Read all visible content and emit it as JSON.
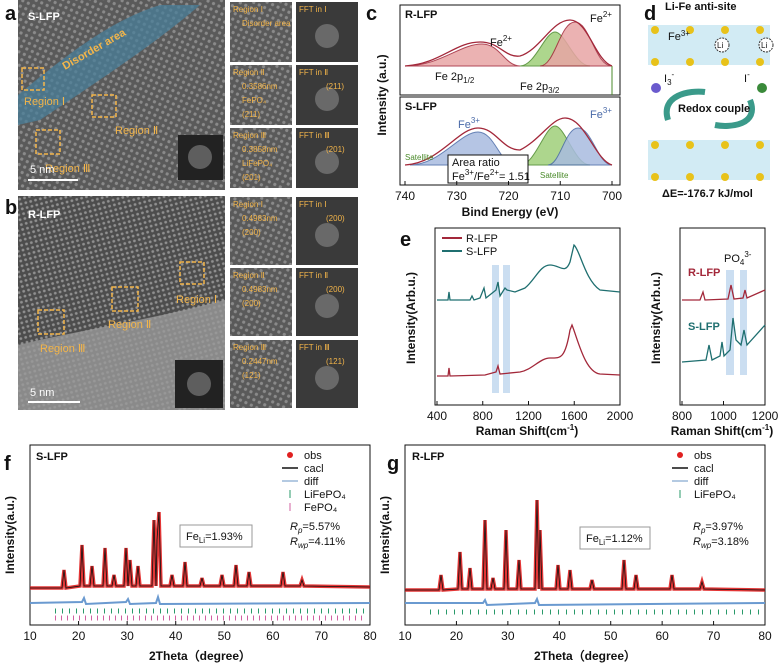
{
  "a": {
    "label": "a",
    "sample": "S-LFP",
    "disorder": "Disorder area",
    "regions": [
      "Region Ⅰ",
      "Region Ⅱ",
      "Region Ⅲ"
    ],
    "scale": "5 nm",
    "tiles": [
      {
        "title": "Region Ⅰ",
        "lines": [
          "Disorder area"
        ]
      },
      {
        "title": "Region Ⅱ",
        "lines": [
          "0.3586nm",
          "FePO₄",
          "(211)"
        ]
      },
      {
        "title": "Region Ⅲ",
        "lines": [
          "0.3858nm",
          "LiFePO₄",
          "(201)"
        ]
      }
    ],
    "ffts": [
      {
        "title": "FFT in Ⅰ"
      },
      {
        "title": "FFT in Ⅱ",
        "lines": [
          "(211)"
        ]
      },
      {
        "title": "FFT in Ⅲ",
        "lines": [
          "(201)"
        ]
      }
    ]
  },
  "b": {
    "label": "b",
    "sample": "R-LFP",
    "regions": [
      "Region Ⅰ",
      "Region Ⅱ",
      "Region Ⅲ"
    ],
    "scale": "5 nm",
    "tiles": [
      {
        "title": "Region Ⅰ",
        "lines": [
          "0.4983nm",
          "(200)"
        ]
      },
      {
        "title": "Region Ⅱ",
        "lines": [
          "0.4983nm",
          "(200)"
        ]
      },
      {
        "title": "Region Ⅲ",
        "lines": [
          "0.2447nm",
          "(121)"
        ]
      }
    ],
    "ffts": [
      {
        "title": "FFT in Ⅰ",
        "lines": [
          "(200)"
        ]
      },
      {
        "title": "FFT in Ⅱ",
        "lines": [
          "(200)"
        ]
      },
      {
        "title": "FFT in Ⅲ",
        "lines": [
          "(121)"
        ]
      }
    ]
  },
  "c": {
    "label": "c",
    "top": "R-LFP",
    "bottom": "S-LFP",
    "fe": "Fe",
    "fe2": "2+",
    "fe3": "3+",
    "p": "Fe 2p",
    "p12": "1/2",
    "p32": "3/2",
    "satellite": "Satellite",
    "ratio_title": "Area ratio",
    "ratio_mid": "/Fe",
    "ratio_end": "= 1.51",
    "ylabel": "Intensity (a.u.)",
    "xlabel": "Bind Energy (eV)",
    "xlim": [
      740,
      700
    ],
    "xticks": [
      740,
      730,
      720,
      710,
      700
    ]
  },
  "d": {
    "label": "d",
    "title": "Li-Fe anti-site",
    "fe": "Fe",
    "fe_sup": "3+",
    "li": "Li",
    "i": "I",
    "i3_sub": "3",
    "minus": "-",
    "redox": "Redox couple",
    "energy": "ΔE=-176.7 kJ/mol"
  },
  "e": {
    "label": "e",
    "legend": [
      {
        "name": "R-LFP",
        "color": "#a3283a"
      },
      {
        "name": "S-LFP",
        "color": "#1f6f70"
      }
    ],
    "ylabel": "Intensity(Arb.u.)",
    "xlabel": "Raman Shift(cm",
    "xlabel_sup": "-1",
    "xlabel_end": ")",
    "xlim": [
      400,
      2000
    ],
    "xticks": [
      400,
      800,
      1200,
      1600,
      2000
    ],
    "inset": {
      "xlim": [
        800,
        1200
      ],
      "xticks": [
        800,
        1000,
        1200
      ],
      "r": "R-LFP",
      "s": "S-LFP",
      "po": "PO",
      "po_sub": "4",
      "po_sup": "3-"
    }
  },
  "f": {
    "label": "f",
    "sample": "S-LFP",
    "legend": [
      "obs",
      "cacl",
      "diff",
      "LiFePO₄",
      "FePO₄"
    ],
    "fe": "Fe",
    "li": "Li",
    "feli": "=1.93%",
    "R": "R",
    "p": "p",
    "wp": "wp",
    "rp": "=5.57%",
    "rwp": "=4.11%",
    "ylabel": "Intensity(a.u.)",
    "xlabel": "2Theta（degree）",
    "xlim": [
      10,
      80
    ],
    "xticks": [
      10,
      20,
      30,
      40,
      50,
      60,
      70,
      80
    ]
  },
  "g": {
    "label": "g",
    "sample": "R-LFP",
    "legend": [
      "obs",
      "cacl",
      "diff",
      "LiFePO₄"
    ],
    "fe": "Fe",
    "li": "Li",
    "feli": "=1.12%",
    "R": "R",
    "p": "p",
    "wp": "wp",
    "rp": "=3.97%",
    "rwp": "=3.18%",
    "ylabel": "Intensity(a.u.)",
    "xlabel": "2Theta（degree）",
    "xlim": [
      10,
      80
    ],
    "xticks": [
      10,
      20,
      30,
      40,
      50,
      60,
      70,
      80
    ]
  }
}
